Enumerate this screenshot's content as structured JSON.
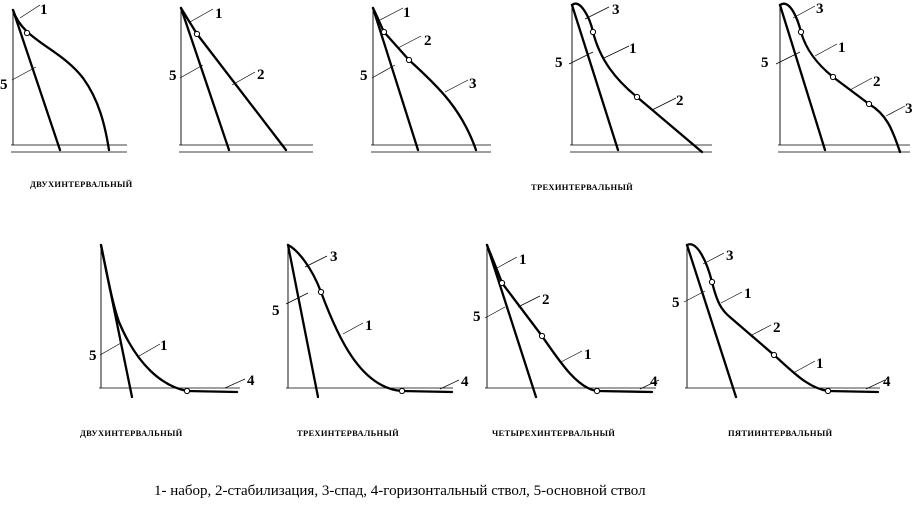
{
  "captions": {
    "top_left": "ДВУХИНТЕРВАЛЬНЫЙ",
    "top_right": "ТРЕХИНТЕРВАЛЬНЫЙ",
    "bottom_1": "ДВУХИНТЕРВАЛЬНЫЙ",
    "bottom_2": "ТРЕХИНТЕРВАЛЬНЫЙ",
    "bottom_3": "ЧЕТЫРЕХИНТЕРВАЛЬНЫЙ",
    "bottom_4": "ПЯТИИНТЕРВАЛЬНЫЙ"
  },
  "legend": "1- набор, 2-стабилизация, 3-спад, 4-горизонтальный ствол, 5-основной ствол",
  "diagrams": [
    {
      "name": "top-two-interval-1",
      "labels": [
        {
          "key": "l1",
          "text": "1"
        },
        {
          "key": "l5",
          "text": "5"
        }
      ]
    },
    {
      "name": "top-two-interval-2",
      "labels": [
        {
          "key": "l1",
          "text": "1"
        },
        {
          "key": "l2",
          "text": "2"
        },
        {
          "key": "l5",
          "text": "5"
        }
      ]
    },
    {
      "name": "top-three-interval-1",
      "labels": [
        {
          "key": "l1",
          "text": "1"
        },
        {
          "key": "l2",
          "text": "2"
        },
        {
          "key": "l3",
          "text": "3"
        },
        {
          "key": "l5",
          "text": "5"
        }
      ]
    },
    {
      "name": "top-three-interval-2",
      "labels": [
        {
          "key": "l3",
          "text": "3"
        },
        {
          "key": "l1",
          "text": "1"
        },
        {
          "key": "l2",
          "text": "2"
        },
        {
          "key": "l5",
          "text": "5"
        }
      ]
    },
    {
      "name": "top-four-segment",
      "labels": [
        {
          "key": "l3a",
          "text": "3"
        },
        {
          "key": "l1",
          "text": "1"
        },
        {
          "key": "l2",
          "text": "2"
        },
        {
          "key": "l3b",
          "text": "3"
        },
        {
          "key": "l5",
          "text": "5"
        }
      ]
    },
    {
      "name": "bottom-two-interval",
      "labels": [
        {
          "key": "l1",
          "text": "1"
        },
        {
          "key": "l4",
          "text": "4"
        },
        {
          "key": "l5",
          "text": "5"
        }
      ]
    },
    {
      "name": "bottom-three-interval",
      "labels": [
        {
          "key": "l3",
          "text": "3"
        },
        {
          "key": "l1",
          "text": "1"
        },
        {
          "key": "l4",
          "text": "4"
        },
        {
          "key": "l5",
          "text": "5"
        }
      ]
    },
    {
      "name": "bottom-four-interval",
      "labels": [
        {
          "key": "l1a",
          "text": "1"
        },
        {
          "key": "l2",
          "text": "2"
        },
        {
          "key": "l1b",
          "text": "1"
        },
        {
          "key": "l4",
          "text": "4"
        },
        {
          "key": "l5",
          "text": "5"
        }
      ]
    },
    {
      "name": "bottom-five-interval",
      "labels": [
        {
          "key": "l3",
          "text": "3"
        },
        {
          "key": "l1a",
          "text": "1"
        },
        {
          "key": "l2",
          "text": "2"
        },
        {
          "key": "l1b",
          "text": "1"
        },
        {
          "key": "l4",
          "text": "4"
        },
        {
          "key": "l5",
          "text": "5"
        }
      ]
    }
  ]
}
